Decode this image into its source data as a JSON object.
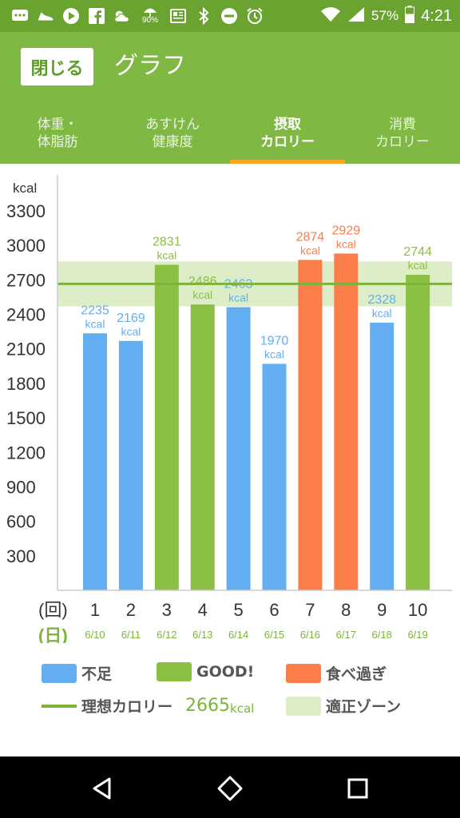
{
  "status_bar": {
    "battery": "57%",
    "time": "4:21",
    "rain_probability": "90%"
  },
  "header": {
    "close_label": "閉じる",
    "title": "グラフ"
  },
  "tabs": [
    {
      "line1": "体重・",
      "line2": "体脂肪",
      "active": false
    },
    {
      "line1": "あすけん",
      "line2": "健康度",
      "active": false
    },
    {
      "line1": "摂取",
      "line2": "カロリー",
      "active": true
    },
    {
      "line1": "消費",
      "line2": "カロリー",
      "active": false
    }
  ],
  "chart_data": {
    "type": "bar",
    "ylabel": "kcal",
    "ylim": [
      0,
      3500
    ],
    "yticks": [
      "3300",
      "3000",
      "2700",
      "2400",
      "2100",
      "1800",
      "1500",
      "1200",
      "900",
      "600",
      "300"
    ],
    "ytick_values": [
      3300,
      3000,
      2700,
      2400,
      2100,
      1800,
      1500,
      1200,
      900,
      600,
      300
    ],
    "x_row1_label": "(回)",
    "x_row2_label": "(日)",
    "categories": [
      "1",
      "2",
      "3",
      "4",
      "5",
      "6",
      "7",
      "8",
      "9",
      "10"
    ],
    "dates": [
      "6/10",
      "6/11",
      "6/12",
      "6/13",
      "6/14",
      "6/15",
      "6/16",
      "6/17",
      "6/18",
      "6/19"
    ],
    "values": [
      2235,
      2169,
      2831,
      2486,
      2463,
      1970,
      2874,
      2929,
      2328,
      2744
    ],
    "statuses": [
      "low",
      "low",
      "good",
      "good",
      "low",
      "low",
      "over",
      "over",
      "low",
      "good"
    ],
    "value_unit": "kcal",
    "ideal": 2665,
    "zone": [
      2470,
      2860
    ],
    "grid": false
  },
  "colors": {
    "low": "#62aef0",
    "good": "#8cc043",
    "over": "#fb7d4a",
    "ideal_line": "#7db33b",
    "zone": "#dcedc8",
    "appbar": "#80b844",
    "statusbar": "#6aa32f"
  },
  "legend": {
    "low_label": "不足",
    "good_label": "GOOD!",
    "over_label": "食べ過ぎ",
    "ideal_label": "理想カロリー",
    "ideal_value": "2665",
    "ideal_unit": "kcal",
    "zone_label": "適正ゾーン"
  },
  "icons": [
    "message-icon",
    "shoe-icon",
    "play-icon",
    "facebook-icon",
    "weather-icon",
    "umbrella-icon",
    "news-icon",
    "bluetooth-icon",
    "dnd-icon",
    "alarm-icon",
    "wifi-icon",
    "signal-icon",
    "back-icon",
    "home-icon",
    "recents-icon"
  ]
}
